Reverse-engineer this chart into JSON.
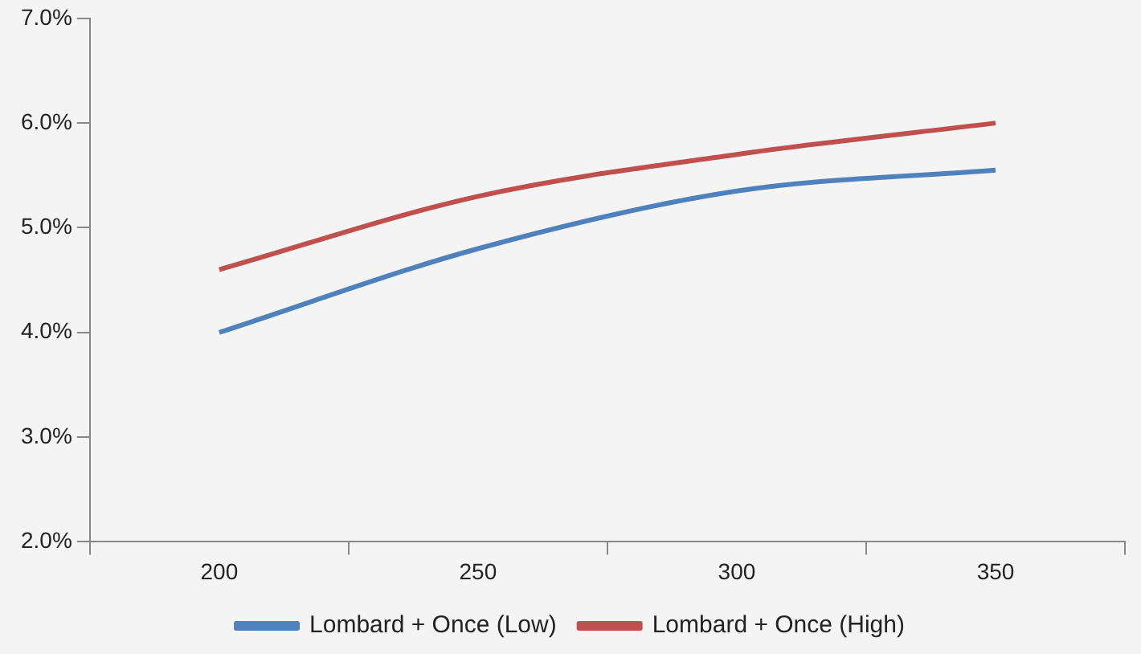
{
  "chart_data": {
    "type": "line",
    "categories": [
      "200",
      "250",
      "300",
      "350"
    ],
    "series": [
      {
        "name": "Lombard + Once (Low)",
        "color": "#4f81bd",
        "values": [
          4.0,
          4.8,
          5.35,
          5.55
        ]
      },
      {
        "name": "Lombard + Once (High)",
        "color": "#c0504d",
        "values": [
          4.6,
          5.3,
          5.7,
          6.0
        ]
      }
    ],
    "ylim": [
      2,
      7
    ],
    "yticks": [
      {
        "value": 2,
        "label": "2.0%"
      },
      {
        "value": 3,
        "label": "3.0%"
      },
      {
        "value": 4,
        "label": "4.0%"
      },
      {
        "value": 5,
        "label": "5.0%"
      },
      {
        "value": 6,
        "label": "6.0%"
      },
      {
        "value": 7,
        "label": "7.0%"
      }
    ],
    "grid": false,
    "legend": "bottom",
    "marker": "none",
    "line_style": "solid"
  }
}
